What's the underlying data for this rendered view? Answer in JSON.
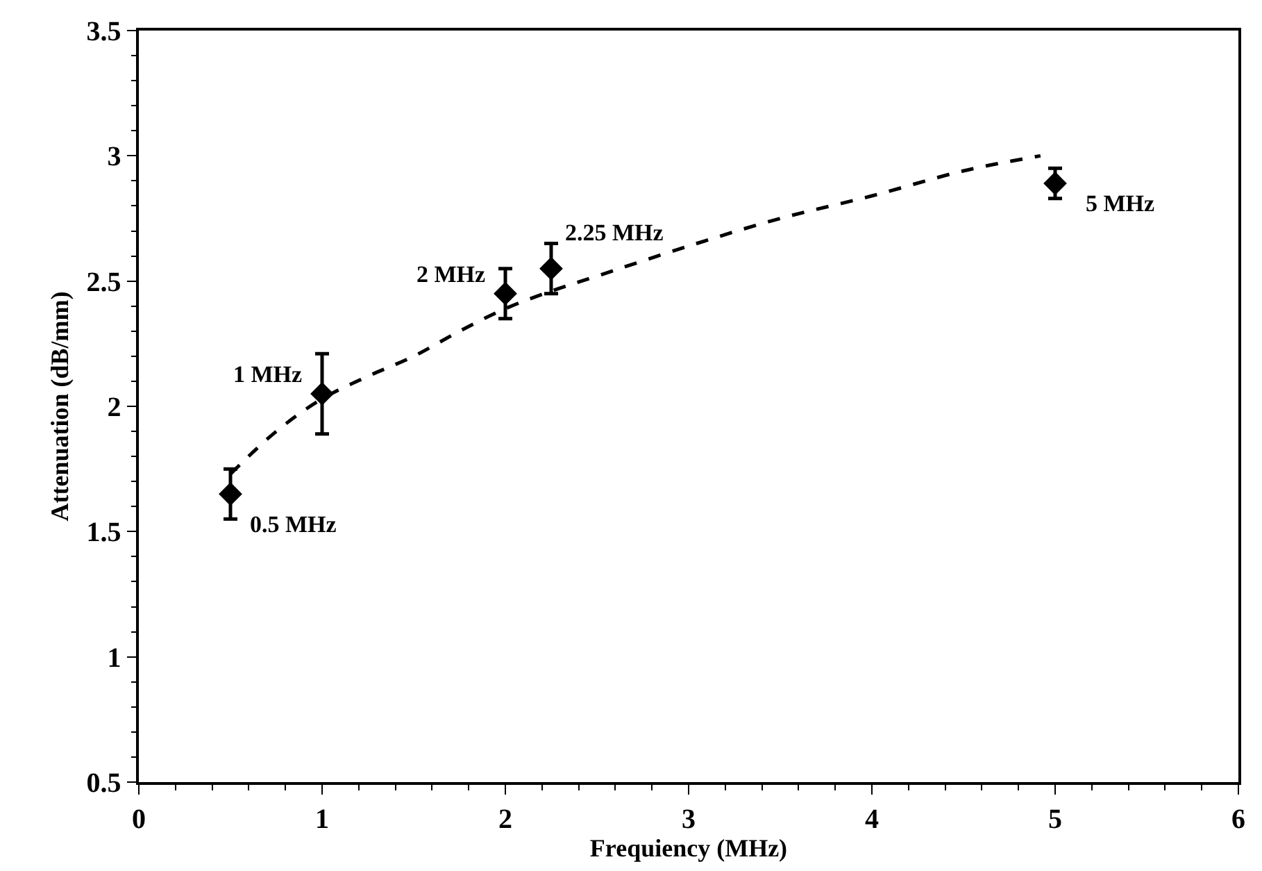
{
  "chart_data": {
    "type": "scatter",
    "xlabel": "Frequiency (MHz)",
    "ylabel": "Attenuation (dB/mm)",
    "xlim": [
      0,
      6
    ],
    "xticks": [
      0,
      1,
      2,
      3,
      4,
      5,
      6
    ],
    "ylim": [
      0.5,
      3.5
    ],
    "yticks": [
      0.5,
      1,
      1.5,
      2,
      2.5,
      3,
      3.5
    ],
    "grid": false,
    "legend": false,
    "series": [
      {
        "color": "#000000",
        "marker": "diamond",
        "x": [
          0.5,
          1,
          2,
          2.25,
          5
        ],
        "values": [
          1.65,
          2.05,
          2.45,
          2.55,
          2.89
        ],
        "errors": [
          0.1,
          0.16,
          0.1,
          0.1,
          0.06
        ]
      },
      {
        "type": "line",
        "color": "#000000",
        "line_style": "dashed",
        "x": [
          0.5,
          0.75,
          1,
          1.25,
          1.5,
          1.75,
          2,
          2.25,
          2.5,
          3,
          3.5,
          4,
          4.5,
          4.92
        ],
        "values": [
          1.73,
          1.9,
          2.03,
          2.12,
          2.2,
          2.3,
          2.39,
          2.46,
          2.52,
          2.64,
          2.75,
          2.84,
          2.94,
          3.0
        ]
      }
    ],
    "annotations": [
      {
        "text": "0.5 MHz",
        "x": 0.5,
        "y": 1.65
      },
      {
        "text": "1 MHz",
        "x": 1,
        "y": 2.05
      },
      {
        "text": "2 MHz",
        "x": 2,
        "y": 2.45
      },
      {
        "text": "2.25 MHz",
        "x": 2.25,
        "y": 2.55
      },
      {
        "text": "5 MHz",
        "x": 5,
        "y": 2.89
      }
    ]
  }
}
